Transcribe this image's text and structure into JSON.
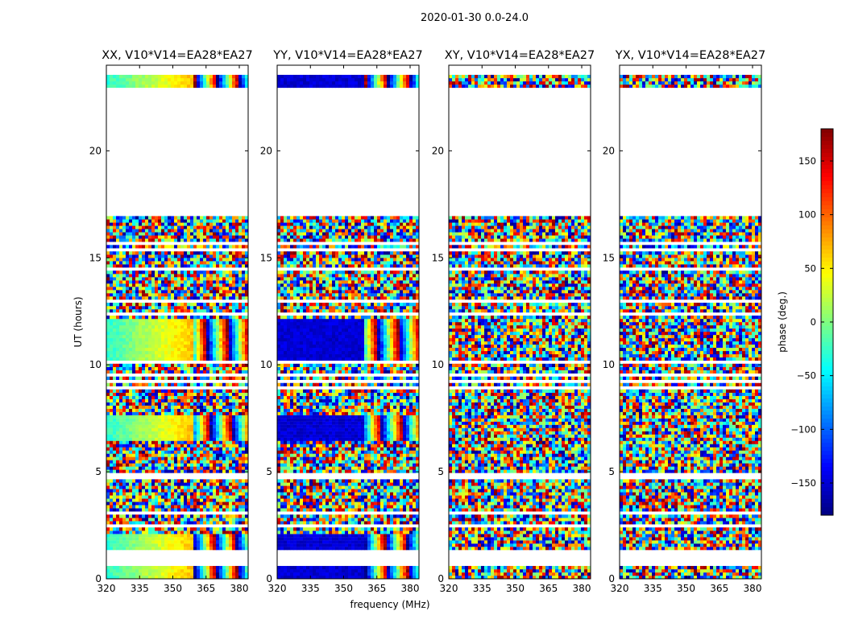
{
  "figure": {
    "suptitle": "2020-01-30 0.0-24.0",
    "xlabel": "frequency (MHz)",
    "ylabel": "UT (hours)"
  },
  "colorbar": {
    "label": "phase (deg.)",
    "range": [
      -180,
      180
    ],
    "ticks": [
      150,
      100,
      50,
      0,
      -50,
      -100,
      -150
    ],
    "tick_labels": [
      "150",
      "100",
      "50",
      "0",
      "−50",
      "−100",
      "−150"
    ],
    "colormap": "jet"
  },
  "chart_data": [
    {
      "type": "heatmap",
      "title": "XX, V10*V14=EA28*EA27",
      "x_range": [
        320,
        384
      ],
      "y_range": [
        0,
        24
      ],
      "x_ticks": [
        320,
        335,
        350,
        365,
        380
      ],
      "x_tick_labels": [
        "320",
        "335",
        "350",
        "365",
        "380"
      ],
      "y_ticks": [
        0,
        5,
        10,
        15,
        20
      ],
      "y_tick_labels": [
        "0",
        "5",
        "10",
        "15",
        "20"
      ],
      "value": "phase (deg.)",
      "pattern": "smooth-gradient",
      "phase_trend_deg": [
        -30,
        70
      ],
      "fringe_start_mhz": 360
    },
    {
      "type": "heatmap",
      "title": "YY, V10*V14=EA28*EA27",
      "x_range": [
        320,
        384
      ],
      "y_range": [
        0,
        24
      ],
      "x_ticks": [
        320,
        335,
        350,
        365,
        380
      ],
      "x_tick_labels": [
        "320",
        "335",
        "350",
        "365",
        "380"
      ],
      "y_ticks": [
        0,
        5,
        10,
        15,
        20
      ],
      "y_tick_labels": [
        "0",
        "5",
        "10",
        "15",
        "20"
      ],
      "value": "phase (deg.)",
      "pattern": "flat",
      "phase_trend_deg": [
        -150,
        -150
      ],
      "fringe_start_mhz": 360
    },
    {
      "type": "heatmap",
      "title": "XY, V10*V14=EA28*EA27",
      "x_range": [
        320,
        384
      ],
      "y_range": [
        0,
        24
      ],
      "x_ticks": [
        320,
        335,
        350,
        365,
        380
      ],
      "x_tick_labels": [
        "320",
        "335",
        "350",
        "365",
        "380"
      ],
      "y_ticks": [
        0,
        5,
        10,
        15,
        20
      ],
      "y_tick_labels": [
        "0",
        "5",
        "10",
        "15",
        "20"
      ],
      "value": "phase (deg.)",
      "pattern": "noise",
      "phase_trend_deg": [
        -180,
        180
      ],
      "fringe_start_mhz": 360
    },
    {
      "type": "heatmap",
      "title": "YX, V10*V14=EA28*EA27",
      "x_range": [
        320,
        384
      ],
      "y_range": [
        0,
        24
      ],
      "x_ticks": [
        320,
        335,
        350,
        365,
        380
      ],
      "x_tick_labels": [
        "320",
        "335",
        "350",
        "365",
        "380"
      ],
      "y_ticks": [
        0,
        5,
        10,
        15,
        20
      ],
      "y_tick_labels": [
        "0",
        "5",
        "10",
        "15",
        "20"
      ],
      "value": "phase (deg.)",
      "pattern": "noise",
      "phase_trend_deg": [
        -180,
        180
      ],
      "fringe_start_mhz": 360
    }
  ],
  "time_coverage": {
    "strong_blocks_hours": [
      [
        0.0,
        0.6
      ],
      [
        1.3,
        2.1
      ],
      [
        6.4,
        7.7
      ],
      [
        10.2,
        12.2
      ],
      [
        22.9,
        23.5
      ]
    ],
    "data_gaps_hours": [
      [
        0.6,
        1.3
      ],
      [
        16.9,
        22.9
      ]
    ]
  }
}
